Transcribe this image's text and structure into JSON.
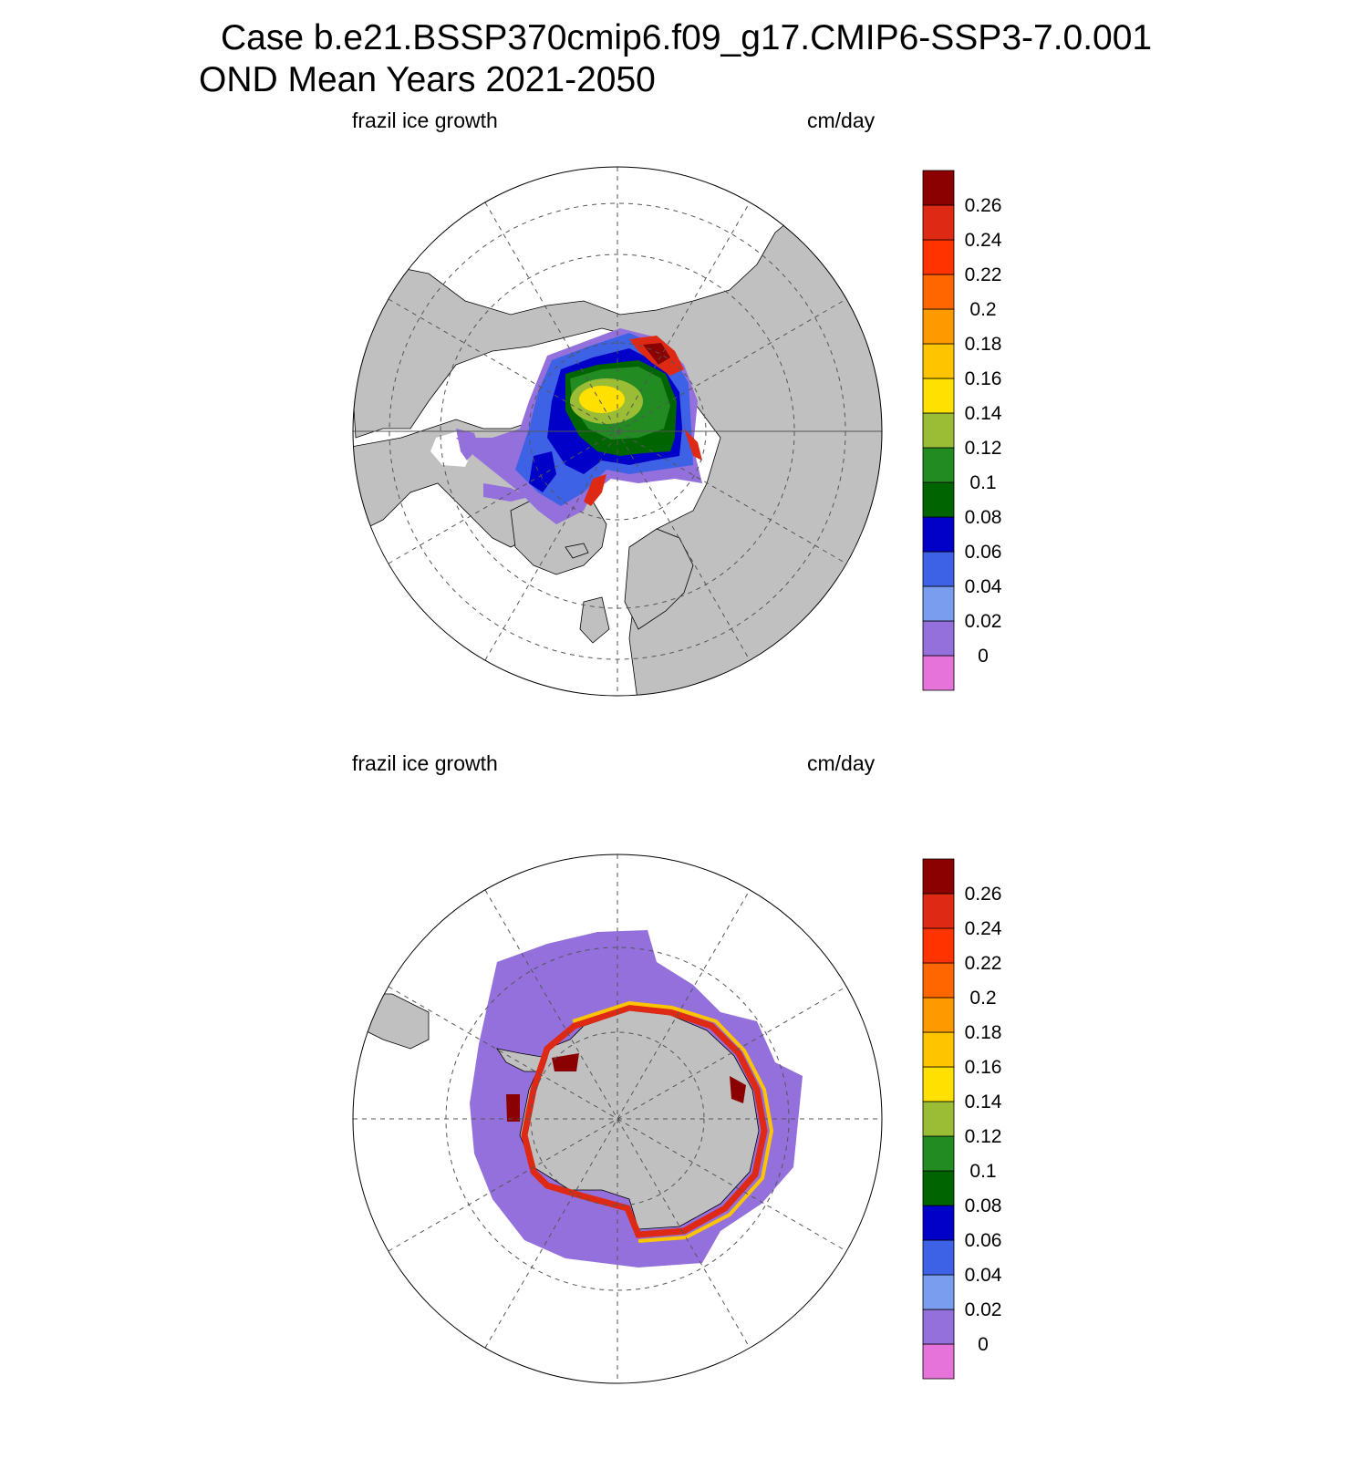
{
  "figure": {
    "title_line1": "Case b.e21.BSSP370cmip6.f09_g17.CMIP6-SSP3-7.0.001",
    "title_line2": "OND Mean   Years 2021-2050"
  },
  "panels": [
    {
      "id": "arctic",
      "hemisphere": "north",
      "left_title": "frazil ice growth",
      "right_title": "cm/day"
    },
    {
      "id": "antarctic",
      "hemisphere": "south",
      "left_title": "frazil ice growth",
      "right_title": "cm/day"
    }
  ],
  "colorbar": {
    "units": "cm/day",
    "labels": [
      "0",
      "0.02",
      "0.04",
      "0.06",
      "0.08",
      "0.1",
      "0.12",
      "0.14",
      "0.16",
      "0.18",
      "0.2",
      "0.22",
      "0.24",
      "0.26"
    ],
    "colors": [
      "#e673d9",
      "#9370db",
      "#7b9df0",
      "#3e62e6",
      "#0000c8",
      "#006400",
      "#228b22",
      "#9abd35",
      "#ffe000",
      "#ffc400",
      "#ff9900",
      "#ff6600",
      "#ff3300",
      "#de2a14",
      "#8b0000"
    ]
  },
  "map_colors": {
    "land": "#c0c0c0",
    "ocean": "#ffffff",
    "grid": "#555555"
  },
  "chart_data": [
    {
      "type": "heatmap",
      "title": "frazil ice growth",
      "units": "cm/day",
      "region": "Northern Hemisphere polar stereographic",
      "levels": [
        0,
        0.02,
        0.04,
        0.06,
        0.08,
        0.1,
        0.12,
        0.14,
        0.16,
        0.18,
        0.2,
        0.22,
        0.24,
        0.26
      ]
    },
    {
      "type": "heatmap",
      "title": "frazil ice growth",
      "units": "cm/day",
      "region": "Southern Hemisphere polar stereographic",
      "levels": [
        0,
        0.02,
        0.04,
        0.06,
        0.08,
        0.1,
        0.12,
        0.14,
        0.16,
        0.18,
        0.2,
        0.22,
        0.24,
        0.26
      ]
    }
  ]
}
